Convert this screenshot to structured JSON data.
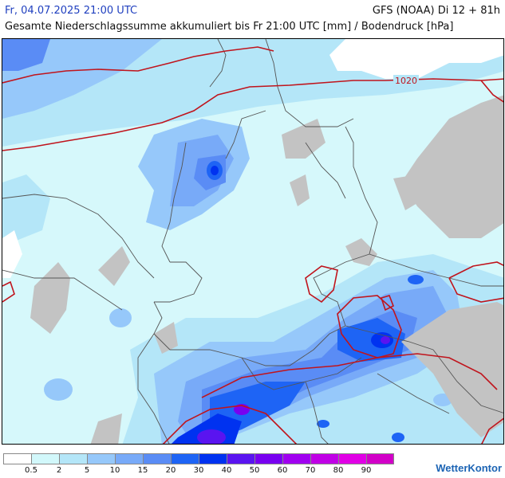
{
  "header": {
    "date": "Fr, 04.07.2025 21:00 UTC",
    "model": "GFS (NOAA) Di 12 + 81h",
    "subtitle": "Gesamte Niederschlagssumme akkumuliert bis Fr 21:00 UTC [mm] / Bodendruck [hPa]"
  },
  "map": {
    "isobar_label": "1020",
    "colors": {
      "land_no_precip": "#d6f8fb",
      "orography": "#c3c3c3",
      "sea": "#ffffff",
      "isobar": "#c0141c",
      "borders": "#555555"
    }
  },
  "legend": {
    "colors": [
      "#ffffff",
      "#d2f8fb",
      "#b4e6f8",
      "#96c8fa",
      "#78aaf8",
      "#5a8cf5",
      "#1e64f5",
      "#0032f0",
      "#5a14f0",
      "#7800f0",
      "#a000f0",
      "#c000e6",
      "#e100e6",
      "#d200c8"
    ],
    "labels": [
      "0.5",
      "2",
      "5",
      "10",
      "15",
      "20",
      "30",
      "40",
      "50",
      "60",
      "70",
      "80",
      "90"
    ]
  },
  "logo": {
    "text": "WetterKontor"
  }
}
